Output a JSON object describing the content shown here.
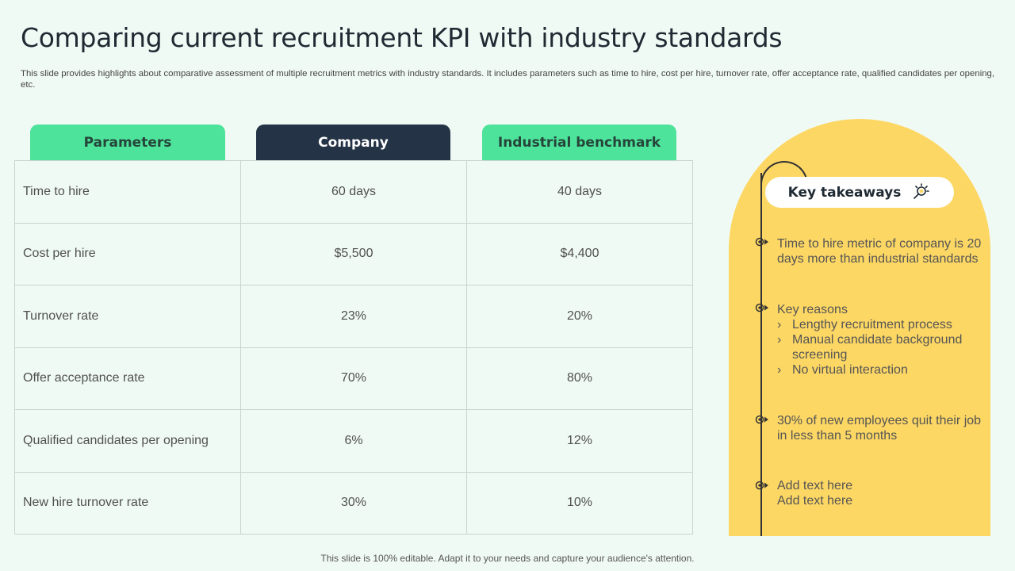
{
  "title": "Comparing current recruitment KPI with industry standards",
  "subtitle": "This slide provides highlights about comparative assessment of multiple recruitment metrics with industry standards. It includes parameters such as time to hire, cost per hire, turnover rate, offer acceptance rate, qualified candidates per opening, etc.",
  "table": {
    "headers": [
      "Parameters",
      "Company",
      "Industrial benchmark"
    ],
    "rows": [
      {
        "parameter": "Time to hire",
        "company": "60 days",
        "benchmark": "40 days"
      },
      {
        "parameter": "Cost per hire",
        "company": "$5,500",
        "benchmark": "$4,400"
      },
      {
        "parameter": "Turnover  rate",
        "company": "23%",
        "benchmark": "20%"
      },
      {
        "parameter": "Offer acceptance rate",
        "company": "70%",
        "benchmark": "80%"
      },
      {
        "parameter": "Qualified candidates per opening",
        "company": "6%",
        "benchmark": "12%"
      },
      {
        "parameter": "New hire turnover  rate",
        "company": "30%",
        "benchmark": "10%"
      }
    ]
  },
  "takeaways": {
    "title": "Key takeaways",
    "icon": "bulb-magnifier-icon",
    "items": [
      {
        "text": "Time to hire metric of company is 20 days more than industrial standards"
      },
      {
        "text": "Key reasons",
        "subitems": [
          "Lengthy recruitment process",
          "Manual candidate background screening",
          "No virtual interaction"
        ]
      },
      {
        "text": "30% of new employees quit their job in less than 5 months"
      },
      {
        "text": "Add text here",
        "text2": "Add text here"
      }
    ]
  },
  "sub_bullet": "›",
  "footer": "This slide is 100% editable. Adapt it to your needs and capture your audience's attention.",
  "colors": {
    "background": "#f0faf5",
    "green_header": "#4de39b",
    "dark_header": "#253346",
    "panel_yellow": "#fdd764"
  }
}
